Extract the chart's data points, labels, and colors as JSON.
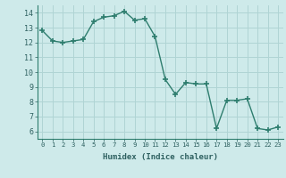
{
  "x": [
    0,
    1,
    2,
    3,
    4,
    5,
    6,
    7,
    8,
    9,
    10,
    11,
    12,
    13,
    14,
    15,
    16,
    17,
    18,
    19,
    20,
    21,
    22,
    23
  ],
  "y": [
    12.8,
    12.1,
    12.0,
    12.1,
    12.2,
    13.4,
    13.7,
    13.8,
    14.1,
    13.5,
    13.6,
    12.4,
    9.5,
    8.5,
    9.3,
    9.2,
    9.2,
    6.2,
    8.1,
    8.1,
    8.2,
    6.2,
    6.1,
    6.3
  ],
  "xlabel": "Humidex (Indice chaleur)",
  "bg_color": "#ceeaea",
  "line_color": "#2e7d6e",
  "marker_color": "#2e7d6e",
  "grid_color_major": "#b0d4d4",
  "grid_color_minor": "#c4e2e2",
  "xlim": [
    -0.5,
    23.5
  ],
  "ylim": [
    5.5,
    14.5
  ],
  "yticks": [
    6,
    7,
    8,
    9,
    10,
    11,
    12,
    13,
    14
  ],
  "xticks": [
    0,
    1,
    2,
    3,
    4,
    5,
    6,
    7,
    8,
    9,
    10,
    11,
    12,
    13,
    14,
    15,
    16,
    17,
    18,
    19,
    20,
    21,
    22,
    23
  ],
  "xtick_labels": [
    "0",
    "1",
    "2",
    "3",
    "4",
    "5",
    "6",
    "7",
    "8",
    "9",
    "10",
    "11",
    "12",
    "13",
    "14",
    "15",
    "16",
    "17",
    "18",
    "19",
    "20",
    "21",
    "22",
    "23"
  ]
}
